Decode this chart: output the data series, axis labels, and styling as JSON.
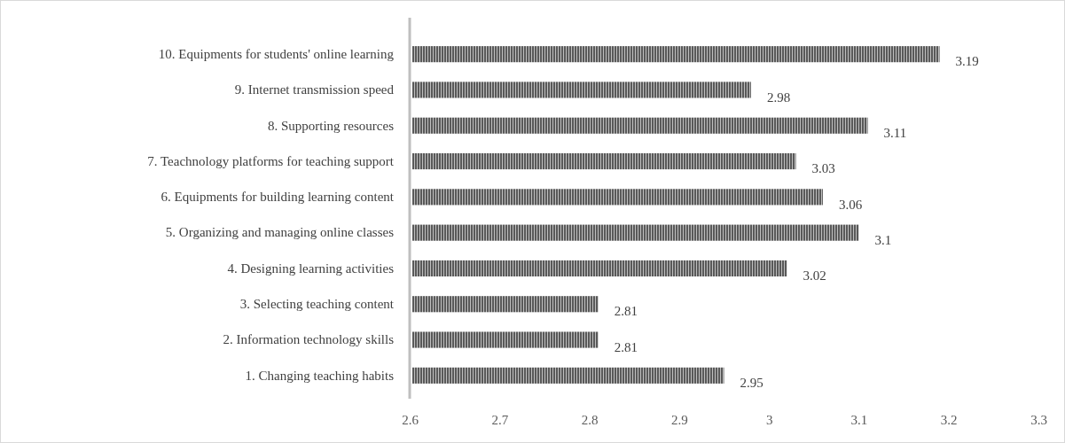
{
  "chart_data": {
    "type": "bar",
    "orientation": "horizontal",
    "categories": [
      "10. Equipments for students' online learning",
      "9. Internet transmission speed",
      "8. Supporting resources",
      "7. Teachnology platforms for teaching support",
      "6. Equipments for building learning content",
      "5. Organizing and managing online classes",
      "4. Designing learning activities",
      "3. Selecting teaching content",
      "2. Information technology skills",
      "1. Changing teaching habits"
    ],
    "values": [
      3.19,
      2.98,
      3.11,
      3.03,
      3.06,
      3.1,
      3.02,
      2.81,
      2.81,
      2.95
    ],
    "color": "#595959",
    "xlim": [
      2.6,
      3.3
    ],
    "xticks": [
      2.6,
      2.7,
      2.8,
      2.9,
      3,
      3.1,
      3.2,
      3.3
    ],
    "grid": false,
    "data_labels": true
  }
}
